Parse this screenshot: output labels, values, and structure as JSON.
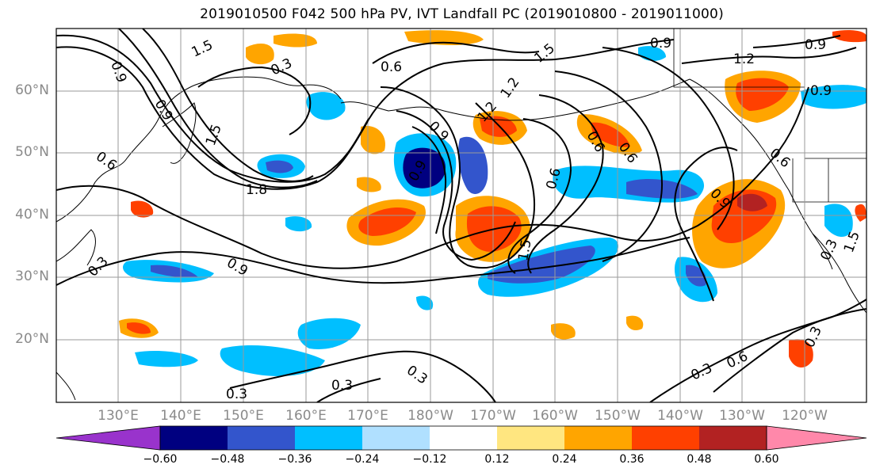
{
  "title": "2019010500 F042 500 hPa PV, IVT Landfall PC (2019010800 - 2019011000)",
  "lat_labels": [
    "60°N",
    "50°N",
    "40°N",
    "30°N",
    "20°N"
  ],
  "lon_labels": [
    "130°E",
    "140°E",
    "150°E",
    "160°E",
    "170°E",
    "180°W",
    "170°W",
    "160°W",
    "150°W",
    "140°W",
    "130°W",
    "120°W"
  ],
  "colorbar": {
    "ticks": [
      "−0.60",
      "−0.48",
      "−0.36",
      "−0.24",
      "−0.12",
      "0.12",
      "0.24",
      "0.36",
      "0.48",
      "0.60"
    ],
    "colors": [
      "#9933cc",
      "#000080",
      "#3355cc",
      "#00bfff",
      "#b0e0ff",
      "#ffffff",
      "#ffe680",
      "#ffa500",
      "#ff4000",
      "#b22222",
      "#ff88aa"
    ]
  },
  "contour_labels": [
    "1.5",
    "0.3",
    "0.6",
    "0.9",
    "1.2",
    "1.5",
    "0.9",
    "1.2",
    "0.6",
    "0.9",
    "1.5",
    "0.6",
    "1.8",
    "0.9",
    "0.3",
    "0.3",
    "0.3",
    "0.9",
    "0.6",
    "0.3",
    "0.3",
    "0.6",
    "1.5",
    "0.9",
    "1.5",
    "0.6",
    "0.3",
    "0.9",
    "1.2",
    "0.9",
    "0.6",
    "0.9",
    "0.3"
  ]
}
